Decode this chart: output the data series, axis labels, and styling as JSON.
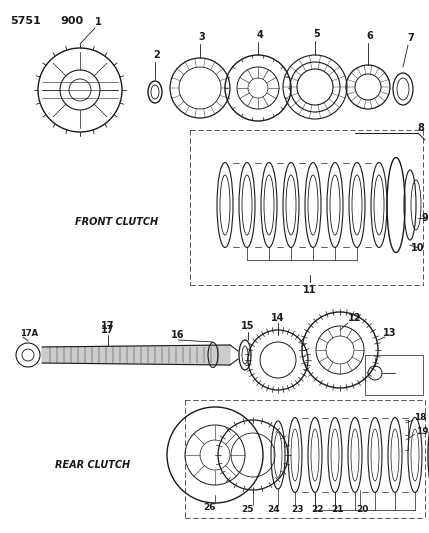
{
  "title_part1": "5751",
  "title_part2": "900",
  "background_color": "#ffffff",
  "ink_color": "#1a1a1a",
  "fig_width": 4.29,
  "fig_height": 5.33,
  "dpi": 100,
  "front_clutch_label": "FRONT CLUTCH",
  "rear_clutch_label": "REAR CLUTCH"
}
